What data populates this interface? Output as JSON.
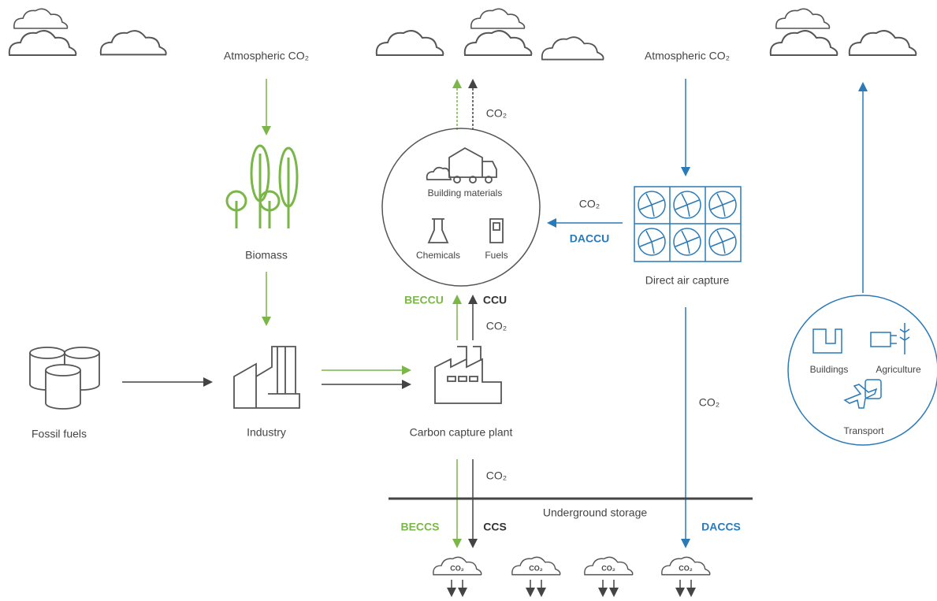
{
  "sources": {
    "atmosphere_left": "Atmospheric CO₂",
    "atmosphere_right": "Atmospheric CO₂",
    "biomass": "Biomass",
    "industry": "Industry",
    "fossil_fuels": "Fossil fuels"
  },
  "capture": {
    "plant": "Carbon capture plant",
    "direct_air": "Direct air capture"
  },
  "products": {
    "building_materials": "Building materials",
    "chemicals": "Chemicals",
    "fuels": "Fuels"
  },
  "emitters": {
    "buildings": "Buildings",
    "agriculture": "Agriculture",
    "transport": "Transport"
  },
  "pathways": {
    "beccu": "BECCU",
    "ccu": "CCU",
    "daccu": "DACCU",
    "beccs": "BECCS",
    "ccs": "CCS",
    "daccs": "DACCS"
  },
  "storage": "Underground storage",
  "flow_labels": [
    "CO₂",
    "CO₂",
    "CO₂",
    "CO₂",
    "CO₂"
  ],
  "storage_clouds": [
    "CO₂",
    "CO₂",
    "CO₂",
    "CO₂"
  ]
}
